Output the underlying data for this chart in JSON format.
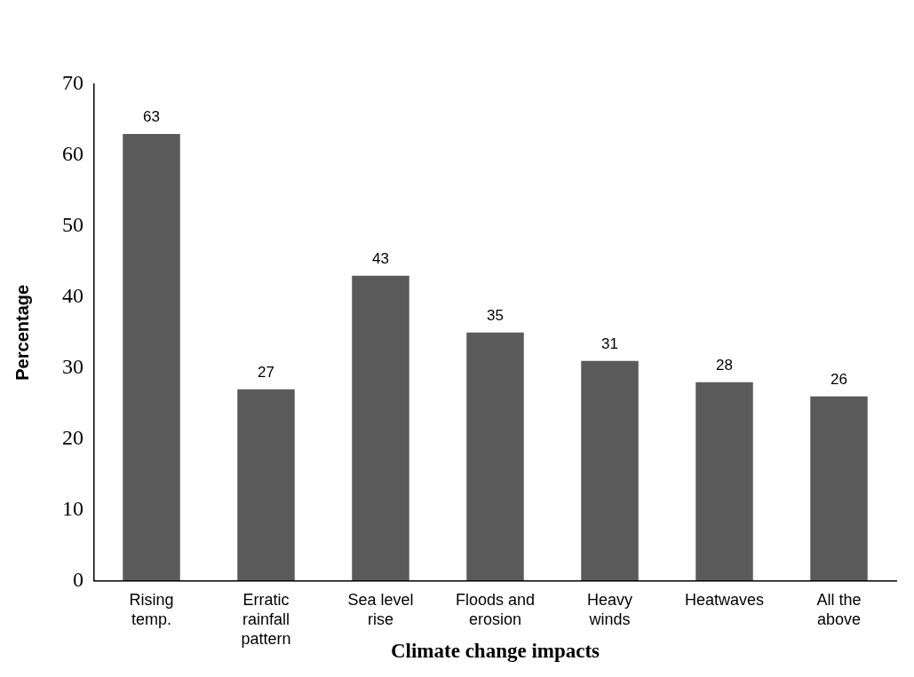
{
  "chart_data": {
    "type": "bar",
    "xlabel": "Climate change impacts",
    "ylabel": "Percentage",
    "categories": [
      "Rising temp.",
      "Erratic rainfall pattern",
      "Sea level rise",
      "Floods and erosion",
      "Heavy winds",
      "Heatwaves",
      "All the above"
    ],
    "values": [
      63,
      27,
      43,
      35,
      31,
      28,
      26
    ],
    "color": "#5a5a5a",
    "ylim": [
      0,
      70
    ],
    "yticks": [
      0,
      10,
      20,
      30,
      40,
      50,
      60,
      70
    ],
    "grid": false,
    "legend": false,
    "data_labels": true
  }
}
